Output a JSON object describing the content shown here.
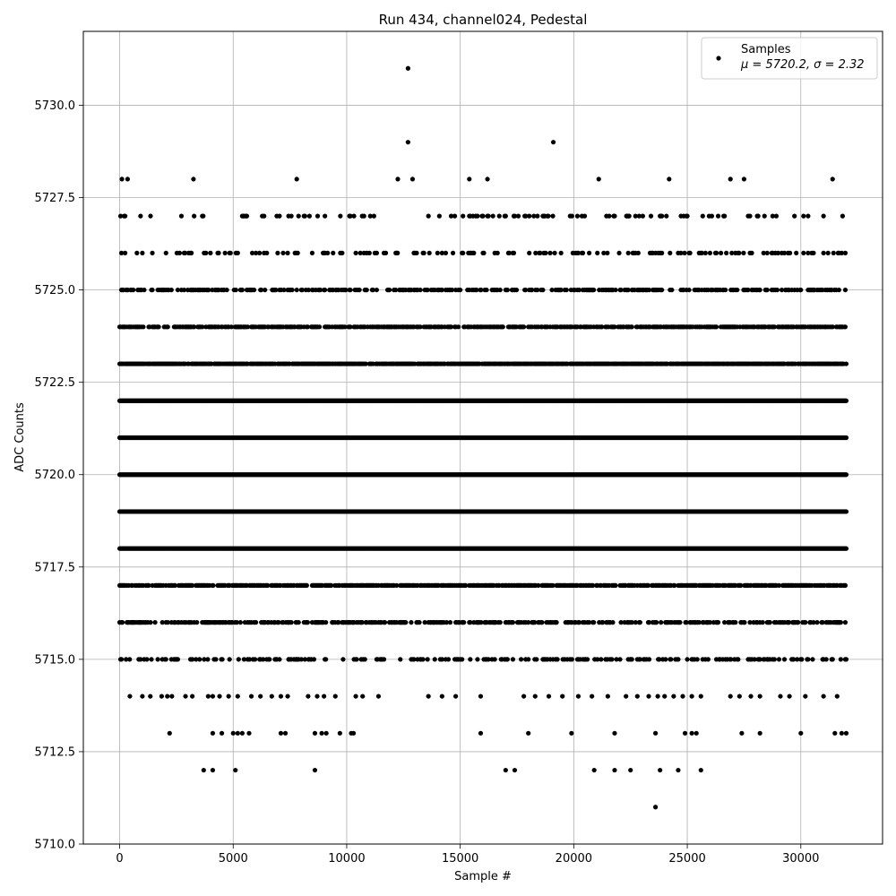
{
  "chart_data": {
    "type": "scatter",
    "title": "Run 434, channel024, Pedestal",
    "xlabel": "Sample #",
    "ylabel": "ADC Counts",
    "xlim": [
      -1600,
      33600
    ],
    "ylim": [
      5710.0,
      5732.0
    ],
    "x_ticks": [
      0,
      5000,
      10000,
      15000,
      20000,
      25000,
      30000
    ],
    "x_tick_labels": [
      "0",
      "5000",
      "10000",
      "15000",
      "20000",
      "25000",
      "30000"
    ],
    "y_ticks": [
      5710.0,
      5712.5,
      5715.0,
      5717.5,
      5720.0,
      5722.5,
      5725.0,
      5727.5,
      5730.0
    ],
    "y_tick_labels": [
      "5710.0",
      "5712.5",
      "5715.0",
      "5717.5",
      "5720.0",
      "5722.5",
      "5725.0",
      "5727.5",
      "5730.0"
    ],
    "grid": true,
    "legend_position": "top-right",
    "marker_color": "#000000",
    "series": [
      {
        "name": "Samples",
        "legend_sub": "μ = 5720.2, σ = 2.32",
        "sample_range": [
          0,
          32000
        ],
        "dense_levels": [
          {
            "y": 5715,
            "density": 0.25
          },
          {
            "y": 5716,
            "density": 0.45
          },
          {
            "y": 5717,
            "density": 0.7
          },
          {
            "y": 5718,
            "density": 1.0
          },
          {
            "y": 5719,
            "density": 1.0
          },
          {
            "y": 5720,
            "density": 1.0
          },
          {
            "y": 5721,
            "density": 1.0
          },
          {
            "y": 5722,
            "density": 1.0
          },
          {
            "y": 5723,
            "density": 0.85
          },
          {
            "y": 5724,
            "density": 0.6
          },
          {
            "y": 5725,
            "density": 0.4
          },
          {
            "y": 5726,
            "density": 0.18
          },
          {
            "y": 5727,
            "density": 0.14
          }
        ],
        "sparse_points": [
          {
            "x": 12700,
            "y": 5731
          },
          {
            "x": 12700,
            "y": 5729
          },
          {
            "x": 19100,
            "y": 5729
          },
          {
            "x": 100,
            "y": 5728
          },
          {
            "x": 350,
            "y": 5728
          },
          {
            "x": 3250,
            "y": 5728
          },
          {
            "x": 7800,
            "y": 5728
          },
          {
            "x": 12250,
            "y": 5728
          },
          {
            "x": 12900,
            "y": 5728
          },
          {
            "x": 15400,
            "y": 5728
          },
          {
            "x": 16200,
            "y": 5728
          },
          {
            "x": 21100,
            "y": 5728
          },
          {
            "x": 24200,
            "y": 5728
          },
          {
            "x": 26900,
            "y": 5728
          },
          {
            "x": 27500,
            "y": 5728
          },
          {
            "x": 31400,
            "y": 5728
          },
          {
            "x": 450,
            "y": 5714
          },
          {
            "x": 1000,
            "y": 5714
          },
          {
            "x": 1350,
            "y": 5714
          },
          {
            "x": 1850,
            "y": 5714
          },
          {
            "x": 2100,
            "y": 5714
          },
          {
            "x": 2300,
            "y": 5714
          },
          {
            "x": 2900,
            "y": 5714
          },
          {
            "x": 3200,
            "y": 5714
          },
          {
            "x": 3900,
            "y": 5714
          },
          {
            "x": 4100,
            "y": 5714
          },
          {
            "x": 4400,
            "y": 5714
          },
          {
            "x": 4800,
            "y": 5714
          },
          {
            "x": 5200,
            "y": 5714
          },
          {
            "x": 5800,
            "y": 5714
          },
          {
            "x": 6200,
            "y": 5714
          },
          {
            "x": 6700,
            "y": 5714
          },
          {
            "x": 7100,
            "y": 5714
          },
          {
            "x": 7400,
            "y": 5714
          },
          {
            "x": 8300,
            "y": 5714
          },
          {
            "x": 8700,
            "y": 5714
          },
          {
            "x": 9000,
            "y": 5714
          },
          {
            "x": 9500,
            "y": 5714
          },
          {
            "x": 10400,
            "y": 5714
          },
          {
            "x": 10700,
            "y": 5714
          },
          {
            "x": 11400,
            "y": 5714
          },
          {
            "x": 13600,
            "y": 5714
          },
          {
            "x": 14200,
            "y": 5714
          },
          {
            "x": 14800,
            "y": 5714
          },
          {
            "x": 15900,
            "y": 5714
          },
          {
            "x": 17800,
            "y": 5714
          },
          {
            "x": 18300,
            "y": 5714
          },
          {
            "x": 18900,
            "y": 5714
          },
          {
            "x": 19500,
            "y": 5714
          },
          {
            "x": 20200,
            "y": 5714
          },
          {
            "x": 20800,
            "y": 5714
          },
          {
            "x": 21500,
            "y": 5714
          },
          {
            "x": 22300,
            "y": 5714
          },
          {
            "x": 22800,
            "y": 5714
          },
          {
            "x": 23300,
            "y": 5714
          },
          {
            "x": 23700,
            "y": 5714
          },
          {
            "x": 24000,
            "y": 5714
          },
          {
            "x": 24400,
            "y": 5714
          },
          {
            "x": 24800,
            "y": 5714
          },
          {
            "x": 25200,
            "y": 5714
          },
          {
            "x": 25600,
            "y": 5714
          },
          {
            "x": 26900,
            "y": 5714
          },
          {
            "x": 27300,
            "y": 5714
          },
          {
            "x": 27800,
            "y": 5714
          },
          {
            "x": 28200,
            "y": 5714
          },
          {
            "x": 29100,
            "y": 5714
          },
          {
            "x": 29500,
            "y": 5714
          },
          {
            "x": 30200,
            "y": 5714
          },
          {
            "x": 31000,
            "y": 5714
          },
          {
            "x": 31600,
            "y": 5714
          },
          {
            "x": 2200,
            "y": 5713
          },
          {
            "x": 4100,
            "y": 5713
          },
          {
            "x": 4500,
            "y": 5713
          },
          {
            "x": 5000,
            "y": 5713
          },
          {
            "x": 5200,
            "y": 5713
          },
          {
            "x": 5400,
            "y": 5713
          },
          {
            "x": 5700,
            "y": 5713
          },
          {
            "x": 7100,
            "y": 5713
          },
          {
            "x": 7300,
            "y": 5713
          },
          {
            "x": 8600,
            "y": 5713
          },
          {
            "x": 8900,
            "y": 5713
          },
          {
            "x": 9100,
            "y": 5713
          },
          {
            "x": 9700,
            "y": 5713
          },
          {
            "x": 10200,
            "y": 5713
          },
          {
            "x": 10300,
            "y": 5713
          },
          {
            "x": 15900,
            "y": 5713
          },
          {
            "x": 18000,
            "y": 5713
          },
          {
            "x": 19900,
            "y": 5713
          },
          {
            "x": 21800,
            "y": 5713
          },
          {
            "x": 23600,
            "y": 5713
          },
          {
            "x": 24900,
            "y": 5713
          },
          {
            "x": 25200,
            "y": 5713
          },
          {
            "x": 25400,
            "y": 5713
          },
          {
            "x": 27400,
            "y": 5713
          },
          {
            "x": 28200,
            "y": 5713
          },
          {
            "x": 30000,
            "y": 5713
          },
          {
            "x": 31500,
            "y": 5713
          },
          {
            "x": 31800,
            "y": 5713
          },
          {
            "x": 32000,
            "y": 5713
          },
          {
            "x": 3700,
            "y": 5712
          },
          {
            "x": 4100,
            "y": 5712
          },
          {
            "x": 5100,
            "y": 5712
          },
          {
            "x": 8600,
            "y": 5712
          },
          {
            "x": 17000,
            "y": 5712
          },
          {
            "x": 17400,
            "y": 5712
          },
          {
            "x": 20900,
            "y": 5712
          },
          {
            "x": 21800,
            "y": 5712
          },
          {
            "x": 22500,
            "y": 5712
          },
          {
            "x": 23800,
            "y": 5712
          },
          {
            "x": 24600,
            "y": 5712
          },
          {
            "x": 25600,
            "y": 5712
          },
          {
            "x": 23600,
            "y": 5711
          }
        ]
      }
    ]
  }
}
